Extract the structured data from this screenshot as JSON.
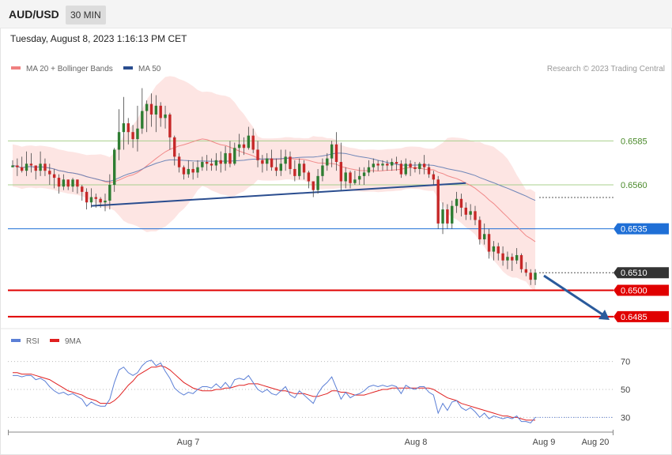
{
  "header": {
    "pair": "AUD/USD",
    "timeframe": "30 MIN",
    "timestamp": "Tuesday, August 8, 2023 1:16:13 PM CET"
  },
  "legend": {
    "ma20": "MA 20 + Bollinger Bands",
    "ma50": "MA 50",
    "credit": "Research © 2023 Trading Central"
  },
  "rsi_legend": {
    "rsi": "RSI",
    "ma": "9MA"
  },
  "colors": {
    "ma20": "#f08080",
    "ma50": "#2a4d8f",
    "band_fill": "#fde0de",
    "up_candle": "#2e7d32",
    "down_candle": "#c62828",
    "resistance": "#a8d08d",
    "pivot": "#1f6fd6",
    "support": "#e00000",
    "current": "#333333",
    "rsi": "#5b7fd6",
    "rsi_ma": "#e02020"
  },
  "chart_data": [
    {
      "type": "candlestick",
      "title": "AUD/USD",
      "ylim": [
        0.648,
        0.6622
      ],
      "x_labels": [
        "Aug 7",
        "Aug 8",
        "Aug 9",
        "Aug 20"
      ],
      "levels": [
        {
          "value": 0.6585,
          "label": "0.6585",
          "kind": "resistance"
        },
        {
          "value": 0.656,
          "label": "0.6560",
          "kind": "resistance"
        },
        {
          "value": 0.6535,
          "label": "0.6535",
          "kind": "pivot"
        },
        {
          "value": 0.651,
          "label": "0.6510",
          "kind": "current"
        },
        {
          "value": 0.65,
          "label": "0.6500",
          "kind": "support"
        },
        {
          "value": 0.6485,
          "label": "0.6485",
          "kind": "support"
        }
      ],
      "candles": [
        [
          0.657,
          0.6571,
          0.657,
          0.6574
        ],
        [
          0.6571,
          0.657,
          0.6565,
          0.6575
        ],
        [
          0.657,
          0.6568,
          0.6567,
          0.6576
        ],
        [
          0.6568,
          0.6572,
          0.6565,
          0.6579
        ],
        [
          0.6572,
          0.6571,
          0.6567,
          0.6578
        ],
        [
          0.6571,
          0.6568,
          0.6563,
          0.6571
        ],
        [
          0.6568,
          0.6572,
          0.6565,
          0.6579
        ],
        [
          0.6572,
          0.6568,
          0.6565,
          0.6575
        ],
        [
          0.6568,
          0.6566,
          0.656,
          0.6572
        ],
        [
          0.6566,
          0.6564,
          0.6558,
          0.6569
        ],
        [
          0.6564,
          0.6559,
          0.6555,
          0.6566
        ],
        [
          0.6559,
          0.6563,
          0.6557,
          0.6566
        ],
        [
          0.6563,
          0.6559,
          0.6557,
          0.6563
        ],
        [
          0.6559,
          0.6563,
          0.6556,
          0.6564
        ],
        [
          0.6563,
          0.6559,
          0.6555,
          0.6563
        ],
        [
          0.6559,
          0.6556,
          0.6551,
          0.656
        ],
        [
          0.6556,
          0.655,
          0.6546,
          0.6558
        ],
        [
          0.655,
          0.6553,
          0.6547,
          0.6558
        ],
        [
          0.6553,
          0.6552,
          0.6547,
          0.6555
        ],
        [
          0.6552,
          0.655,
          0.6547,
          0.6553
        ],
        [
          0.655,
          0.6551,
          0.6545,
          0.6555
        ],
        [
          0.6551,
          0.656,
          0.6546,
          0.6566
        ],
        [
          0.656,
          0.658,
          0.6556,
          0.6581
        ],
        [
          0.658,
          0.659,
          0.6574,
          0.6603
        ],
        [
          0.659,
          0.6595,
          0.658,
          0.661
        ],
        [
          0.6595,
          0.659,
          0.6583,
          0.6598
        ],
        [
          0.659,
          0.6586,
          0.6581,
          0.6594
        ],
        [
          0.6586,
          0.6592,
          0.6579,
          0.6605
        ],
        [
          0.6592,
          0.6602,
          0.6589,
          0.6615
        ],
        [
          0.6602,
          0.6606,
          0.659,
          0.6608
        ],
        [
          0.6606,
          0.66,
          0.6593,
          0.6612
        ],
        [
          0.66,
          0.6605,
          0.659,
          0.6611
        ],
        [
          0.6605,
          0.6598,
          0.6593,
          0.6607
        ],
        [
          0.6598,
          0.66,
          0.6592,
          0.6605
        ],
        [
          0.66,
          0.6587,
          0.658,
          0.6601
        ],
        [
          0.6587,
          0.6576,
          0.6571,
          0.6588
        ],
        [
          0.6576,
          0.657,
          0.6567,
          0.6578
        ],
        [
          0.657,
          0.6566,
          0.6563,
          0.6571
        ],
        [
          0.6566,
          0.6569,
          0.6564,
          0.6574
        ],
        [
          0.6569,
          0.6567,
          0.6563,
          0.6573
        ],
        [
          0.6567,
          0.657,
          0.6564,
          0.6574
        ],
        [
          0.657,
          0.6573,
          0.6568,
          0.6576
        ],
        [
          0.6573,
          0.6572,
          0.6568,
          0.6577
        ],
        [
          0.6572,
          0.6571,
          0.6568,
          0.6575
        ],
        [
          0.6571,
          0.6574,
          0.6568,
          0.6578
        ],
        [
          0.6574,
          0.6572,
          0.6567,
          0.6579
        ],
        [
          0.6572,
          0.6578,
          0.6568,
          0.6582
        ],
        [
          0.6578,
          0.6572,
          0.657,
          0.6585
        ],
        [
          0.6572,
          0.6581,
          0.6571,
          0.6584
        ],
        [
          0.6581,
          0.6583,
          0.6576,
          0.6589
        ],
        [
          0.6583,
          0.6581,
          0.6577,
          0.6587
        ],
        [
          0.6581,
          0.6588,
          0.658,
          0.6593
        ],
        [
          0.6588,
          0.658,
          0.6578,
          0.6592
        ],
        [
          0.658,
          0.6574,
          0.657,
          0.6585
        ],
        [
          0.6574,
          0.6572,
          0.6567,
          0.6577
        ],
        [
          0.6572,
          0.6575,
          0.6568,
          0.6578
        ],
        [
          0.6575,
          0.657,
          0.6568,
          0.658
        ],
        [
          0.657,
          0.6568,
          0.6565,
          0.6575
        ],
        [
          0.6568,
          0.6572,
          0.6565,
          0.658
        ],
        [
          0.6572,
          0.6576,
          0.6568,
          0.658
        ],
        [
          0.6576,
          0.6569,
          0.6566,
          0.6579
        ],
        [
          0.6569,
          0.6565,
          0.6562,
          0.6574
        ],
        [
          0.6565,
          0.6572,
          0.6563,
          0.6575
        ],
        [
          0.6572,
          0.6567,
          0.6563,
          0.6574
        ],
        [
          0.6567,
          0.6562,
          0.6558,
          0.6568
        ],
        [
          0.6562,
          0.6557,
          0.6553,
          0.6562
        ],
        [
          0.6557,
          0.6565,
          0.6555,
          0.6569
        ],
        [
          0.6565,
          0.6571,
          0.6562,
          0.6575
        ],
        [
          0.6571,
          0.6575,
          0.6568,
          0.6578
        ],
        [
          0.6575,
          0.6583,
          0.657,
          0.6585
        ],
        [
          0.6583,
          0.6573,
          0.6568,
          0.659
        ],
        [
          0.6573,
          0.6562,
          0.6557,
          0.6584
        ],
        [
          0.6562,
          0.6567,
          0.6558,
          0.657
        ],
        [
          0.6567,
          0.6561,
          0.6558,
          0.6568
        ],
        [
          0.6561,
          0.6563,
          0.656,
          0.6568
        ],
        [
          0.6563,
          0.6565,
          0.656,
          0.657
        ],
        [
          0.6565,
          0.6567,
          0.656,
          0.657
        ],
        [
          0.6567,
          0.657,
          0.6565,
          0.6574
        ],
        [
          0.657,
          0.6572,
          0.6567,
          0.6575
        ],
        [
          0.6572,
          0.6571,
          0.6568,
          0.6574
        ],
        [
          0.6571,
          0.6572,
          0.6568,
          0.6574
        ],
        [
          0.6572,
          0.6571,
          0.6568,
          0.6574
        ],
        [
          0.6571,
          0.6573,
          0.6568,
          0.6575
        ],
        [
          0.6573,
          0.6572,
          0.6568,
          0.6576
        ],
        [
          0.6572,
          0.6566,
          0.6564,
          0.6574
        ],
        [
          0.6566,
          0.6572,
          0.6565,
          0.6575
        ],
        [
          0.6572,
          0.657,
          0.6565,
          0.6574
        ],
        [
          0.657,
          0.6569,
          0.6567,
          0.6573
        ],
        [
          0.6569,
          0.6572,
          0.6566,
          0.6573
        ],
        [
          0.6572,
          0.657,
          0.6566,
          0.6577
        ],
        [
          0.657,
          0.6566,
          0.6564,
          0.6572
        ],
        [
          0.6566,
          0.6563,
          0.656,
          0.6568
        ],
        [
          0.6563,
          0.6538,
          0.6535,
          0.6565
        ],
        [
          0.6538,
          0.6546,
          0.6532,
          0.655
        ],
        [
          0.6546,
          0.6538,
          0.6535,
          0.6549
        ],
        [
          0.6538,
          0.6548,
          0.6535,
          0.6551
        ],
        [
          0.6548,
          0.6552,
          0.6544,
          0.6556
        ],
        [
          0.6552,
          0.6547,
          0.6542,
          0.6555
        ],
        [
          0.6547,
          0.6543,
          0.654,
          0.655
        ],
        [
          0.6543,
          0.6545,
          0.654,
          0.6549
        ],
        [
          0.6545,
          0.654,
          0.6537,
          0.6548
        ],
        [
          0.654,
          0.6529,
          0.6526,
          0.6542
        ],
        [
          0.6529,
          0.6532,
          0.6526,
          0.6538
        ],
        [
          0.6532,
          0.6522,
          0.6518,
          0.6535
        ],
        [
          0.6522,
          0.6525,
          0.6517,
          0.6528
        ],
        [
          0.6525,
          0.6521,
          0.6517,
          0.6527
        ],
        [
          0.6521,
          0.6517,
          0.6514,
          0.6525
        ],
        [
          0.6517,
          0.6519,
          0.6512,
          0.6522
        ],
        [
          0.6519,
          0.6517,
          0.6511,
          0.6521
        ],
        [
          0.6517,
          0.652,
          0.6515,
          0.6524
        ],
        [
          0.652,
          0.6512,
          0.651,
          0.6521
        ],
        [
          0.6512,
          0.651,
          0.6508,
          0.6516
        ],
        [
          0.651,
          0.6506,
          0.6503,
          0.6512
        ],
        [
          0.6506,
          0.651,
          0.6503,
          0.6512
        ]
      ],
      "trendlines": [
        {
          "from": [
            0.6548,
            0
          ],
          "to": [
            0.6561,
            1
          ],
          "label": ""
        }
      ]
    },
    {
      "type": "line",
      "title": "RSI",
      "ylim": [
        20,
        80
      ],
      "yticks": [
        70,
        50,
        30
      ],
      "series": [
        {
          "name": "RSI",
          "values": [
            60,
            60,
            59,
            60,
            60,
            57,
            58,
            56,
            52,
            49,
            47,
            48,
            46,
            47,
            45,
            43,
            38,
            41,
            39,
            38,
            38,
            43,
            55,
            64,
            66,
            62,
            60,
            62,
            67,
            70,
            71,
            67,
            69,
            63,
            58,
            51,
            48,
            46,
            48,
            47,
            50,
            52,
            52,
            51,
            54,
            51,
            55,
            51,
            57,
            58,
            57,
            60,
            55,
            50,
            48,
            50,
            47,
            46,
            49,
            52,
            46,
            44,
            49,
            46,
            43,
            40,
            47,
            52,
            55,
            59,
            51,
            43,
            48,
            44,
            46,
            47,
            49,
            52,
            53,
            52,
            53,
            52,
            53,
            52,
            47,
            53,
            51,
            50,
            52,
            52,
            48,
            46,
            33,
            40,
            35,
            41,
            42,
            37,
            35,
            37,
            34,
            30,
            33,
            29,
            31,
            30,
            29,
            30,
            29,
            31,
            27,
            27,
            26,
            30
          ]
        },
        {
          "name": "9MA",
          "values": [
            62,
            62,
            61,
            61,
            61,
            60,
            59,
            58,
            57,
            55,
            53,
            51,
            49,
            48,
            47,
            46,
            44,
            43,
            42,
            40,
            40,
            40,
            42,
            45,
            49,
            53,
            56,
            60,
            62,
            64,
            66,
            66,
            67,
            66,
            64,
            61,
            58,
            55,
            53,
            51,
            50,
            49,
            49,
            49,
            50,
            50,
            51,
            51,
            52,
            53,
            53,
            54,
            54,
            54,
            53,
            52,
            51,
            50,
            49,
            49,
            48,
            47,
            47,
            47,
            46,
            45,
            45,
            46,
            47,
            49,
            49,
            48,
            48,
            47,
            46,
            46,
            46,
            47,
            48,
            49,
            50,
            50,
            51,
            51,
            51,
            51,
            51,
            51,
            51,
            51,
            51,
            50,
            48,
            46,
            44,
            43,
            42,
            40,
            39,
            38,
            37,
            36,
            35,
            34,
            33,
            32,
            31,
            31,
            30,
            30,
            29,
            28,
            28,
            28
          ]
        }
      ]
    }
  ],
  "x_labels": [
    "Aug 7",
    "Aug 8",
    "Aug 9",
    "Aug 20"
  ]
}
